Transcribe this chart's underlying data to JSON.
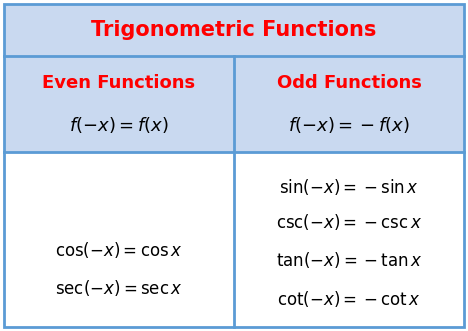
{
  "title": "Trigonometric Functions",
  "title_color": "#FF0000",
  "header_bg": "#C9D9F0",
  "body_bg": "#FFFFFF",
  "border_color": "#5B9BD5",
  "col1_header": "Even Functions",
  "col2_header": "Odd Functions",
  "header_color": "#FF0000",
  "col1_formula": "$f(-x) = f(x)$",
  "col2_formula": "$f(-x) = -f(x)$",
  "col1_items": [
    "$\\cos(-x) = \\cos x$",
    "$\\sec(-x) = \\sec x$"
  ],
  "col2_items": [
    "$\\sin(-x) = -\\sin x$",
    "$\\csc(-x) = -\\csc x$",
    "$\\tan(-x) = -\\tan x$",
    "$\\cot(-x) = -\\cot x$"
  ],
  "fig_width": 4.68,
  "fig_height": 3.31,
  "dpi": 100
}
